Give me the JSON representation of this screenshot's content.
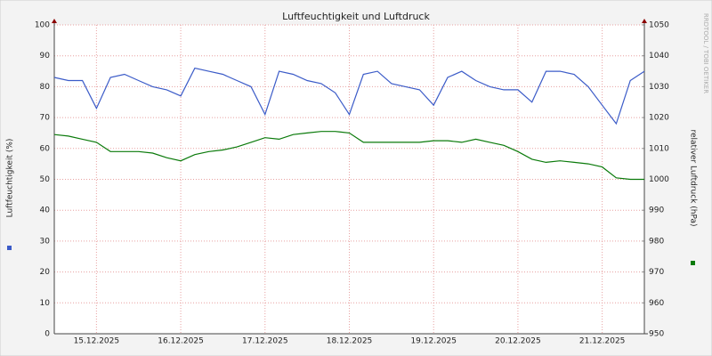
{
  "chart_data": {
    "type": "line",
    "title": "Luftfeuchtigkeit und Luftdruck",
    "ylabel": "Luftfeuchtigkeit (%)",
    "y2label": "relativer Luftdruck (hPa)",
    "watermark": "RRDTOOL / TOBI OETIKER",
    "xlim": [
      0,
      42
    ],
    "xticks": [
      {
        "value": 3,
        "label": "15.12.2025"
      },
      {
        "value": 9,
        "label": "16.12.2025"
      },
      {
        "value": 15,
        "label": "17.12.2025"
      },
      {
        "value": 21,
        "label": "18.12.2025"
      },
      {
        "value": 27,
        "label": "19.12.2025"
      },
      {
        "value": 33,
        "label": "20.12.2025"
      },
      {
        "value": 39,
        "label": "21.12.2025"
      }
    ],
    "ylim": [
      0,
      100
    ],
    "yticks": [
      0,
      10,
      20,
      30,
      40,
      50,
      60,
      70,
      80,
      90,
      100
    ],
    "y2lim": [
      950,
      1050
    ],
    "y2ticks": [
      950,
      960,
      970,
      980,
      990,
      1000,
      1010,
      1020,
      1030,
      1040,
      1050
    ],
    "grid": true,
    "series": [
      {
        "color": "#3b5bc8",
        "values": [
          83,
          82,
          82,
          73,
          83,
          84,
          82,
          80,
          79,
          77,
          86,
          85,
          84,
          82,
          80,
          71,
          85,
          84,
          82,
          81,
          78,
          71,
          84,
          85,
          81,
          80,
          79,
          74,
          83,
          85,
          82,
          80,
          79,
          79,
          75,
          85,
          85,
          84,
          80,
          74,
          68,
          82,
          85
        ]
      },
      {
        "color": "#0a7a0a",
        "axis": "y2",
        "values": [
          1014.5,
          1014,
          1013,
          1012,
          1009,
          1009,
          1009,
          1008.5,
          1007,
          1006,
          1008,
          1009,
          1009.5,
          1010.5,
          1012,
          1013.5,
          1013,
          1014.5,
          1015,
          1015.5,
          1015.5,
          1015,
          1012,
          1012,
          1012,
          1012,
          1012,
          1012.5,
          1012.5,
          1012,
          1013,
          1012,
          1011,
          1009,
          1006.5,
          1005.5,
          1006,
          1005.5,
          1005,
          1004,
          1000.5,
          1000,
          1000
        ]
      }
    ]
  }
}
